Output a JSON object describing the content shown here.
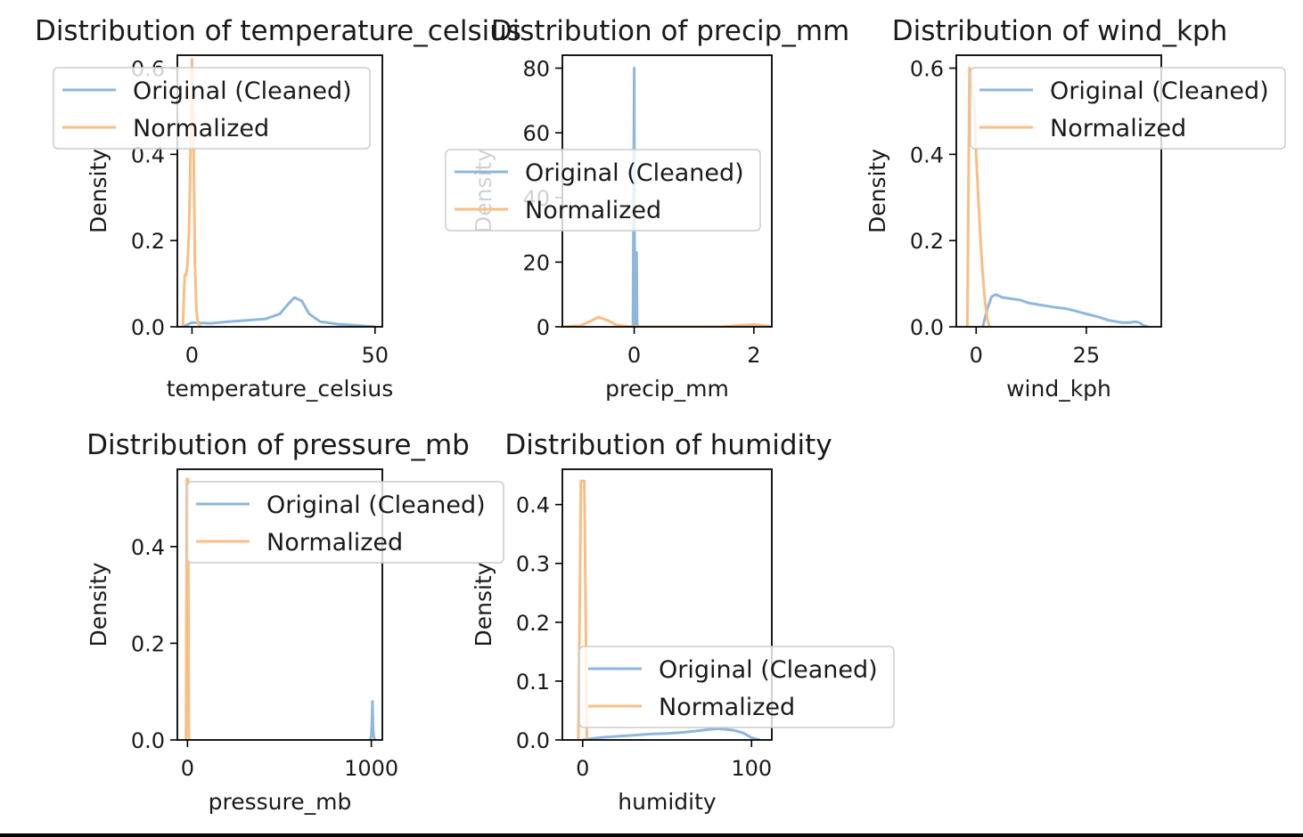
{
  "colors": {
    "original": "#8fb7dc",
    "normalized": "#f9be84",
    "axes": "#000000",
    "legend_border": "#cccccc"
  },
  "chart_data": [
    {
      "type": "line",
      "title": "Distribution of temperature_celsius",
      "xlabel": "temperature_celsius",
      "ylabel": "Density",
      "xlim": [
        -4,
        52
      ],
      "ylim": [
        0,
        0.63
      ],
      "xticks": [
        0,
        50
      ],
      "yticks": [
        0,
        0.2,
        0.4,
        0.6
      ],
      "xticklabels": [
        "0",
        "50"
      ],
      "yticklabels": [
        "0.0",
        "0.2",
        "0.4",
        "0.6"
      ],
      "legend_placement": "upper-left",
      "series": [
        {
          "name": "Original (Cleaned)",
          "x": [
            -2,
            0,
            5,
            10,
            15,
            20,
            24,
            26,
            28,
            30,
            32,
            35,
            40,
            45,
            50
          ],
          "y": [
            0.002,
            0.01,
            0.008,
            0.012,
            0.015,
            0.018,
            0.03,
            0.05,
            0.068,
            0.06,
            0.03,
            0.012,
            0.006,
            0.003,
            0.0
          ]
        },
        {
          "name": "Normalized",
          "x": [
            -2.5,
            -2,
            -1.6,
            -1.2,
            -0.8,
            -0.4,
            0,
            0.4,
            0.8,
            1.2,
            1.6,
            2,
            2.5
          ],
          "y": [
            0.0,
            0.12,
            0.12,
            0.15,
            0.22,
            0.4,
            0.62,
            0.45,
            0.15,
            0.04,
            0.01,
            0.003,
            0.0
          ]
        }
      ]
    },
    {
      "type": "line",
      "title": "Distribution of precip_mm",
      "xlabel": "precip_mm",
      "ylabel": "Density",
      "xlim": [
        -1.2,
        2.3
      ],
      "ylim": [
        0,
        84
      ],
      "xticks": [
        0,
        2
      ],
      "yticks": [
        0,
        20,
        40,
        60,
        80
      ],
      "xticklabels": [
        "0",
        "2"
      ],
      "yticklabels": [
        "0",
        "20",
        "40",
        "60",
        "80"
      ],
      "legend_placement": "center-left",
      "series": [
        {
          "name": "Original (Cleaned)",
          "x": [
            -0.05,
            -0.02,
            0,
            0.01,
            0.02,
            0.03,
            0.04,
            0.05,
            0.06,
            0.07,
            0.08
          ],
          "y": [
            0,
            0.5,
            80,
            1,
            0.5,
            22,
            23,
            1,
            0.3,
            0.1,
            0
          ]
        },
        {
          "name": "Normalized",
          "x": [
            -1.2,
            -0.9,
            -0.7,
            -0.6,
            -0.45,
            -0.3,
            -0.1,
            0,
            0.5,
            1,
            1.5,
            1.8,
            2,
            2.2,
            2.3
          ],
          "y": [
            0,
            0.3,
            2.0,
            3.0,
            2.0,
            0.6,
            0.1,
            0,
            0,
            0,
            0.05,
            0.5,
            0.7,
            0.3,
            0
          ]
        }
      ]
    },
    {
      "type": "line",
      "title": "Distribution of wind_kph",
      "xlabel": "wind_kph",
      "ylabel": "Density",
      "xlim": [
        -4.5,
        42
      ],
      "ylim": [
        0,
        0.63
      ],
      "xticks": [
        0,
        25
      ],
      "yticks": [
        0,
        0.2,
        0.4,
        0.6
      ],
      "xticklabels": [
        "0",
        "25"
      ],
      "yticklabels": [
        "0.0",
        "0.2",
        "0.4",
        "0.6"
      ],
      "legend_placement": "upper-right",
      "series": [
        {
          "name": "Original (Cleaned)",
          "x": [
            1.5,
            2.5,
            3.5,
            4.5,
            6,
            8,
            10,
            12,
            15,
            18,
            20,
            22,
            25,
            28,
            30,
            33,
            35,
            36,
            37,
            38,
            39
          ],
          "y": [
            0.0,
            0.04,
            0.07,
            0.075,
            0.068,
            0.065,
            0.062,
            0.055,
            0.05,
            0.045,
            0.043,
            0.038,
            0.03,
            0.022,
            0.015,
            0.01,
            0.01,
            0.012,
            0.01,
            0.003,
            0.0
          ]
        },
        {
          "name": "Normalized",
          "x": [
            -2.0,
            -1.5,
            -1.0,
            -0.5,
            0,
            0.5,
            1.0,
            1.5,
            2.0,
            2.5,
            3.0
          ],
          "y": [
            0.0,
            0.6,
            0.58,
            0.5,
            0.4,
            0.3,
            0.2,
            0.12,
            0.06,
            0.02,
            0.0
          ]
        }
      ]
    },
    {
      "type": "line",
      "title": "Distribution of pressure_mb",
      "xlabel": "pressure_mb",
      "ylabel": "Density",
      "xlim": [
        -55,
        1060
      ],
      "ylim": [
        0,
        0.56
      ],
      "xticks": [
        0,
        1000
      ],
      "yticks": [
        0,
        0.2,
        0.4
      ],
      "xticklabels": [
        "0",
        "1000"
      ],
      "yticklabels": [
        "0.0",
        "0.2",
        "0.4"
      ],
      "legend_placement": "upper-right",
      "series": [
        {
          "name": "Original (Cleaned)",
          "x": [
            995,
            1000,
            1003,
            1006,
            1009,
            1012,
            1015,
            1020
          ],
          "y": [
            0.0,
            0.01,
            0.03,
            0.08,
            0.03,
            0.01,
            0.005,
            0.0
          ]
        },
        {
          "name": "Normalized",
          "x": [
            -8,
            -3,
            0,
            3,
            8
          ],
          "y": [
            0.0,
            0.54,
            0.54,
            0.54,
            0.0
          ]
        }
      ]
    },
    {
      "type": "line",
      "title": "Distribution of humidity",
      "xlabel": "humidity",
      "ylabel": "Density",
      "xlim": [
        -12,
        112
      ],
      "ylim": [
        0,
        0.46
      ],
      "xticks": [
        0,
        100
      ],
      "yticks": [
        0,
        0.1,
        0.2,
        0.3,
        0.4
      ],
      "xticklabels": [
        "0",
        "100"
      ],
      "yticklabels": [
        "0.0",
        "0.1",
        "0.2",
        "0.3",
        "0.4"
      ],
      "legend_placement": "lower-right",
      "series": [
        {
          "name": "Original (Cleaned)",
          "x": [
            0,
            10,
            20,
            30,
            40,
            50,
            60,
            70,
            75,
            80,
            85,
            90,
            95,
            100,
            105
          ],
          "y": [
            0.0,
            0.004,
            0.006,
            0.008,
            0.01,
            0.011,
            0.013,
            0.016,
            0.018,
            0.019,
            0.018,
            0.016,
            0.012,
            0.004,
            0.0
          ]
        },
        {
          "name": "Normalized",
          "x": [
            -2.5,
            -1.5,
            -1,
            0,
            1,
            1.5,
            2.5
          ],
          "y": [
            0.0,
            0.3,
            0.44,
            0.44,
            0.44,
            0.3,
            0.0
          ]
        }
      ]
    }
  ]
}
